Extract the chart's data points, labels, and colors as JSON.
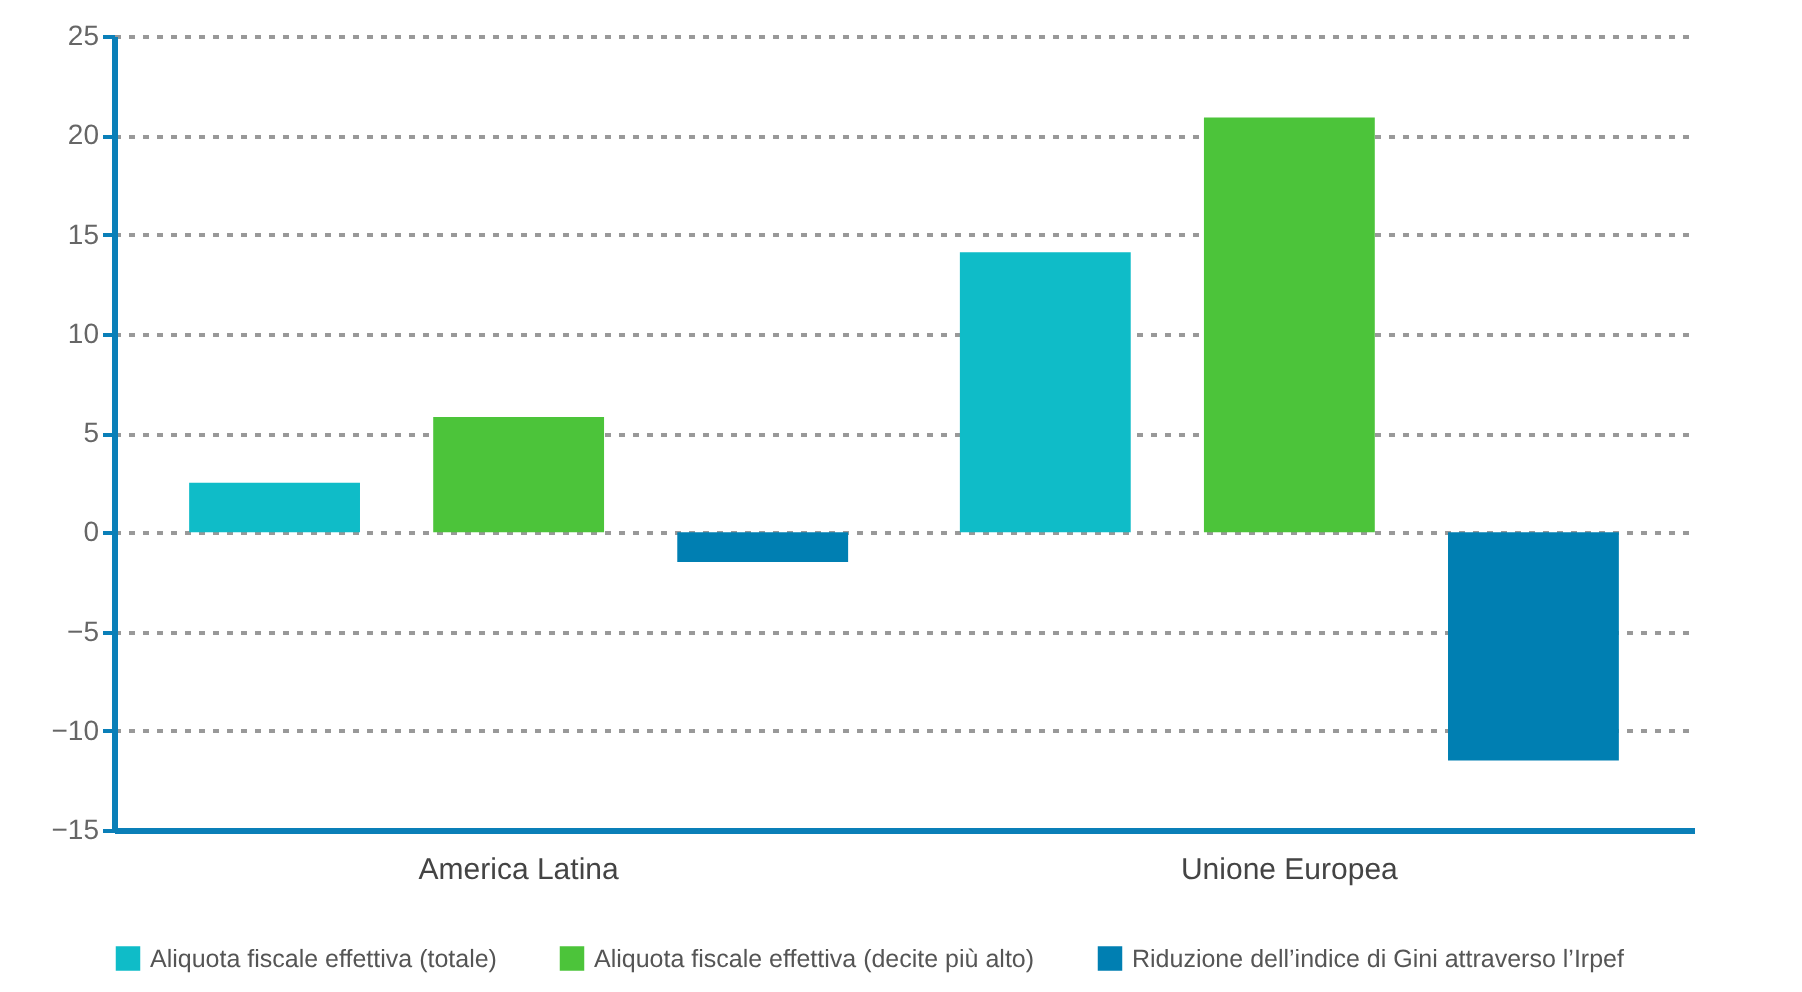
{
  "chart_data": {
    "type": "bar",
    "categories": [
      "America Latina",
      "Unione Europea"
    ],
    "series": [
      {
        "name": "Aliquota fiscale effettiva (totale)",
        "color": "#0fbcc8",
        "values": [
          2.5,
          14.1
        ]
      },
      {
        "name": "Aliquota fiscale effettiva (decite più alto)",
        "color": "#4cc43a",
        "values": [
          5.8,
          20.9
        ]
      },
      {
        "name": "Riduzione dell’indice di Gini attraverso l’Irpef",
        "color": "#007fb2",
        "values": [
          -1.5,
          -11.5
        ]
      }
    ],
    "ylim": [
      -15,
      25
    ],
    "yticks": [
      -15,
      -10,
      -5,
      0,
      5,
      10,
      15,
      20,
      25
    ],
    "grid": "y",
    "legend": "bottom"
  }
}
